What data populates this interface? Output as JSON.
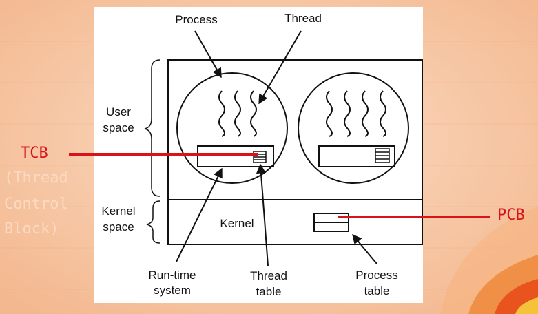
{
  "labels": {
    "process": "Process",
    "thread": "Thread",
    "user_space_line1": "User",
    "user_space_line2": "space",
    "kernel_space_line1": "Kernel",
    "kernel_space_line2": "space",
    "kernel": "Kernel",
    "runtime_line1": "Run-time",
    "runtime_line2": "system",
    "thread_table_line1": "Thread",
    "thread_table_line2": "table",
    "process_table_line1": "Process",
    "process_table_line2": "table"
  },
  "annotations": {
    "tcb": "TCB",
    "tcb_note_line1": "(Thread",
    "tcb_note_line2": "Control",
    "tcb_note_line3": "Block)",
    "pcb": "PCB"
  },
  "colors": {
    "background": "#f7c9a7",
    "panel": "#ffffff",
    "annotation_red": "#d8141a",
    "faint_text": "#fbd9c2",
    "ink": "#111111"
  }
}
